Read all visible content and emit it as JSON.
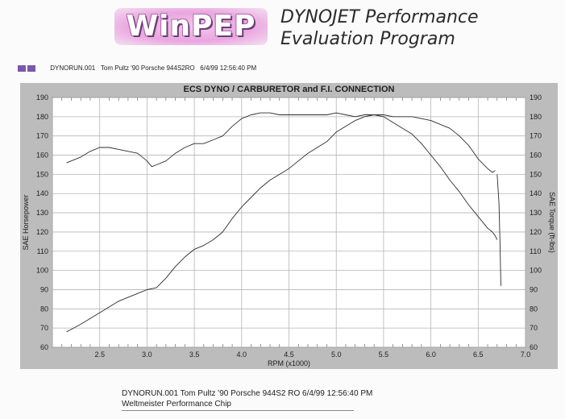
{
  "header": {
    "logo_text": "WinPEP",
    "title_line1": "DYNOJET Performance",
    "title_line2": "Evaluation Program"
  },
  "legend": {
    "run_file": "DYNORUN.001",
    "run_desc": "Tom Pultz '90 Porsche 944S2RO",
    "run_time": "6/4/99 12:56:40 PM",
    "marker_color": "#7a58a8"
  },
  "footer": {
    "line1": "DYNORUN.001   Tom Pultz '90 Porsche 944S2   RO   6/4/99 12:56:40 PM",
    "line2": "Weltmeister Performance Chip"
  },
  "colors": {
    "panel": "#bcbcbc",
    "plot_bg": "#ffffff",
    "grid": "#b5b5b5",
    "line": "#2b2b2b"
  },
  "chart_data": {
    "type": "line",
    "title": "ECS DYNO  / CARBURETOR  and F.I. CONNECTION",
    "xlabel": "RPM (x1000)",
    "ylabel_left": "SAE Horsepower",
    "ylabel_right": "SAE Torque (ft-lbs)",
    "xlim": [
      2.0,
      7.0
    ],
    "ylim": [
      60,
      190
    ],
    "x_ticks": [
      "2.5",
      "3.0",
      "3.5",
      "4.0",
      "4.5",
      "5.0",
      "5.5",
      "6.0",
      "6.5",
      "7.0"
    ],
    "y_ticks": [
      "60",
      "70",
      "80",
      "90",
      "100",
      "110",
      "120",
      "130",
      "140",
      "150",
      "160",
      "170",
      "180",
      "190"
    ],
    "grid": true,
    "series": [
      {
        "style": "solid",
        "points": [
          [
            2.15,
            156
          ],
          [
            2.3,
            159
          ],
          [
            2.4,
            162
          ],
          [
            2.5,
            164
          ],
          [
            2.6,
            164
          ],
          [
            2.7,
            163
          ],
          [
            2.8,
            162
          ],
          [
            2.9,
            161
          ],
          [
            3.0,
            157
          ],
          [
            3.05,
            154
          ],
          [
            3.1,
            155
          ],
          [
            3.2,
            157
          ],
          [
            3.3,
            161
          ],
          [
            3.4,
            164
          ],
          [
            3.5,
            166
          ],
          [
            3.6,
            166
          ],
          [
            3.7,
            168
          ],
          [
            3.8,
            170
          ],
          [
            3.9,
            175
          ],
          [
            4.0,
            179
          ],
          [
            4.1,
            181
          ],
          [
            4.2,
            182
          ],
          [
            4.3,
            182
          ],
          [
            4.4,
            181
          ],
          [
            4.5,
            181
          ],
          [
            4.6,
            181
          ],
          [
            4.7,
            181
          ],
          [
            4.8,
            181
          ],
          [
            4.9,
            181
          ],
          [
            5.0,
            182
          ],
          [
            5.1,
            181
          ],
          [
            5.2,
            180
          ],
          [
            5.3,
            181
          ],
          [
            5.4,
            181
          ],
          [
            5.5,
            181
          ],
          [
            5.6,
            180
          ],
          [
            5.7,
            180
          ],
          [
            5.8,
            180
          ],
          [
            5.9,
            179
          ],
          [
            6.0,
            178
          ],
          [
            6.1,
            176
          ],
          [
            6.2,
            174
          ],
          [
            6.3,
            170
          ],
          [
            6.4,
            165
          ],
          [
            6.5,
            158
          ],
          [
            6.6,
            153
          ],
          [
            6.65,
            151
          ],
          [
            6.68,
            152
          ]
        ]
      },
      {
        "style": "solid",
        "points": [
          [
            2.15,
            68
          ],
          [
            2.3,
            72
          ],
          [
            2.5,
            78
          ],
          [
            2.7,
            84
          ],
          [
            2.9,
            88
          ],
          [
            3.0,
            90
          ],
          [
            3.1,
            91
          ],
          [
            3.2,
            96
          ],
          [
            3.3,
            102
          ],
          [
            3.4,
            107
          ],
          [
            3.5,
            111
          ],
          [
            3.6,
            113
          ],
          [
            3.7,
            116
          ],
          [
            3.8,
            120
          ],
          [
            3.9,
            127
          ],
          [
            4.0,
            133
          ],
          [
            4.1,
            138
          ],
          [
            4.2,
            143
          ],
          [
            4.3,
            147
          ],
          [
            4.4,
            150
          ],
          [
            4.5,
            153
          ],
          [
            4.6,
            157
          ],
          [
            4.7,
            161
          ],
          [
            4.8,
            164
          ],
          [
            4.9,
            167
          ],
          [
            5.0,
            172
          ],
          [
            5.1,
            175
          ],
          [
            5.2,
            178
          ],
          [
            5.3,
            180
          ],
          [
            5.4,
            181
          ],
          [
            5.5,
            180
          ],
          [
            5.6,
            177
          ],
          [
            5.7,
            174
          ],
          [
            5.8,
            171
          ],
          [
            5.9,
            166
          ],
          [
            6.0,
            160
          ],
          [
            6.1,
            154
          ],
          [
            6.2,
            147
          ],
          [
            6.3,
            141
          ],
          [
            6.4,
            134
          ],
          [
            6.5,
            128
          ],
          [
            6.6,
            122
          ],
          [
            6.65,
            120
          ],
          [
            6.68,
            118
          ],
          [
            6.7,
            116
          ]
        ]
      },
      {
        "style": "solid",
        "points": [
          [
            6.7,
            150
          ],
          [
            6.72,
            135
          ],
          [
            6.73,
            115
          ],
          [
            6.74,
            92
          ]
        ]
      }
    ]
  }
}
